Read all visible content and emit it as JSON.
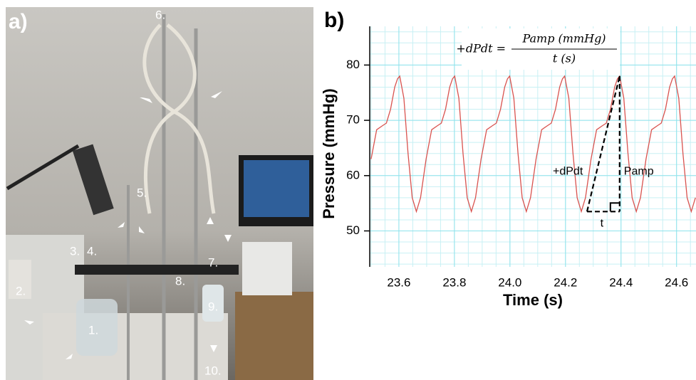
{
  "photo": {
    "panel_label": "a)",
    "labels": [
      "1.",
      "2.",
      "3.",
      "4.",
      "5.",
      "6.",
      "7.",
      "8.",
      "9.",
      "10."
    ]
  },
  "chart_data": {
    "type": "line",
    "panel_label": "b)",
    "xlabel": "Time (s)",
    "ylabel": "Pressure (mmHg)",
    "formula": {
      "left": "+dPdt =",
      "numerator": "Pamp (mmHg)",
      "denominator": "t (s)"
    },
    "annotations": {
      "slope": "+dPdt",
      "amplitude": "Pamp",
      "time": "t"
    },
    "color": "#d9534f",
    "grid": true,
    "xlim": [
      23.495,
      24.67
    ],
    "ylim": [
      43.5,
      87
    ],
    "xticks": [
      23.6,
      23.8,
      {
        "value": 24,
        "label": "24.0"
      },
      24.2,
      24.4,
      24.6
    ],
    "yticks": [
      50,
      60,
      70,
      80
    ],
    "x": [
      23.5,
      23.52,
      23.54,
      23.555,
      23.57,
      23.585,
      23.595,
      23.603,
      23.618,
      23.633,
      23.648,
      23.663,
      23.678,
      23.698,
      23.718,
      23.738,
      23.753,
      23.768,
      23.783,
      23.793,
      23.801,
      23.816,
      23.831,
      23.846,
      23.861,
      23.876,
      23.896,
      23.916,
      23.936,
      23.951,
      23.966,
      23.981,
      23.991,
      23.999,
      24.014,
      24.029,
      24.044,
      24.059,
      24.074,
      24.094,
      24.114,
      24.134,
      24.149,
      24.164,
      24.179,
      24.189,
      24.197,
      24.212,
      24.227,
      24.242,
      24.257,
      24.272,
      24.292,
      24.312,
      24.332,
      24.347,
      24.362,
      24.377,
      24.387,
      24.395,
      24.41,
      24.425,
      24.44,
      24.455,
      24.47,
      24.49,
      24.51,
      24.53,
      24.545,
      24.56,
      24.575,
      24.585,
      24.593,
      24.608,
      24.623,
      24.638,
      24.653,
      24.668
    ],
    "values": [
      63,
      68.3,
      69,
      69.5,
      72,
      76,
      77.5,
      78,
      74,
      64,
      56,
      53.5,
      56,
      63,
      68.3,
      69,
      69.5,
      72,
      76,
      77.5,
      78,
      74,
      64,
      56,
      53.5,
      56,
      63,
      68.3,
      69,
      69.5,
      72,
      76,
      77.5,
      78,
      74,
      64,
      56,
      53.5,
      56,
      63,
      68.3,
      69,
      69.5,
      72,
      76,
      77.5,
      78,
      74,
      64,
      56,
      53.5,
      56,
      63,
      68.3,
      69,
      69.5,
      72,
      76,
      77.5,
      78,
      74,
      64,
      56,
      53.5,
      56,
      63,
      68.3,
      69,
      69.5,
      72,
      76,
      77.5,
      78,
      74,
      64,
      56,
      53.5,
      56
    ]
  }
}
